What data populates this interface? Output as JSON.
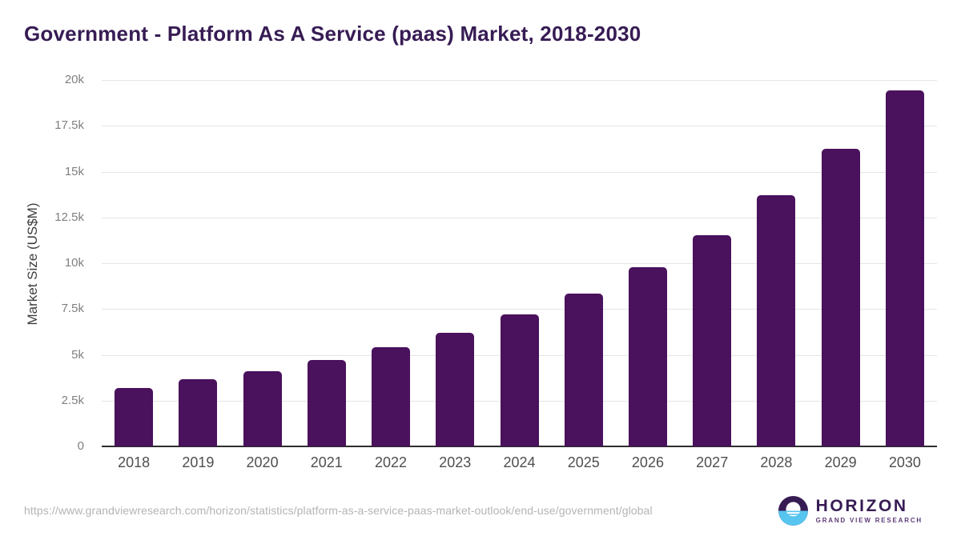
{
  "title": "Government - Platform As A Service (paas) Market, 2018-2030",
  "footer": {
    "source_url": "https://www.grandviewresearch.com/horizon/statistics/platform-as-a-service-paas-market-outlook/end-use/government/global",
    "logo": {
      "name": "HORIZON",
      "subtitle": "GRAND VIEW RESEARCH"
    }
  },
  "colors": {
    "bar": "#4a115c",
    "title": "#371c54",
    "gridline": "#e5e5e5",
    "baseline": "#2e2e2e",
    "x_tick_label": "#4f4f4f",
    "y_tick_label": "#7f7f7f",
    "url_text": "#b4b4b4",
    "logo_purple": "#371c54",
    "logo_blue": "#57c5ef"
  },
  "chart_data": {
    "type": "bar",
    "title": "Government - Platform As A Service (paas) Market, 2018-2030",
    "categories": [
      "2018",
      "2019",
      "2020",
      "2021",
      "2022",
      "2023",
      "2024",
      "2025",
      "2026",
      "2027",
      "2028",
      "2029",
      "2030"
    ],
    "values": [
      3200,
      3650,
      4100,
      4700,
      5400,
      6200,
      7200,
      8350,
      9800,
      11550,
      13700,
      16250,
      19450
    ],
    "xlabel": "",
    "ylabel": "Market Size (US$M)",
    "ylim": [
      0,
      20000
    ],
    "yticks": [
      0,
      2500,
      5000,
      7500,
      10000,
      12500,
      15000,
      17500,
      20000
    ],
    "ytick_labels": [
      "0",
      "2.5k",
      "5k",
      "7.5k",
      "10k",
      "12.5k",
      "15k",
      "17.5k",
      "20k"
    ],
    "grid": true,
    "legend": false,
    "bar_color": "#4a115c"
  }
}
